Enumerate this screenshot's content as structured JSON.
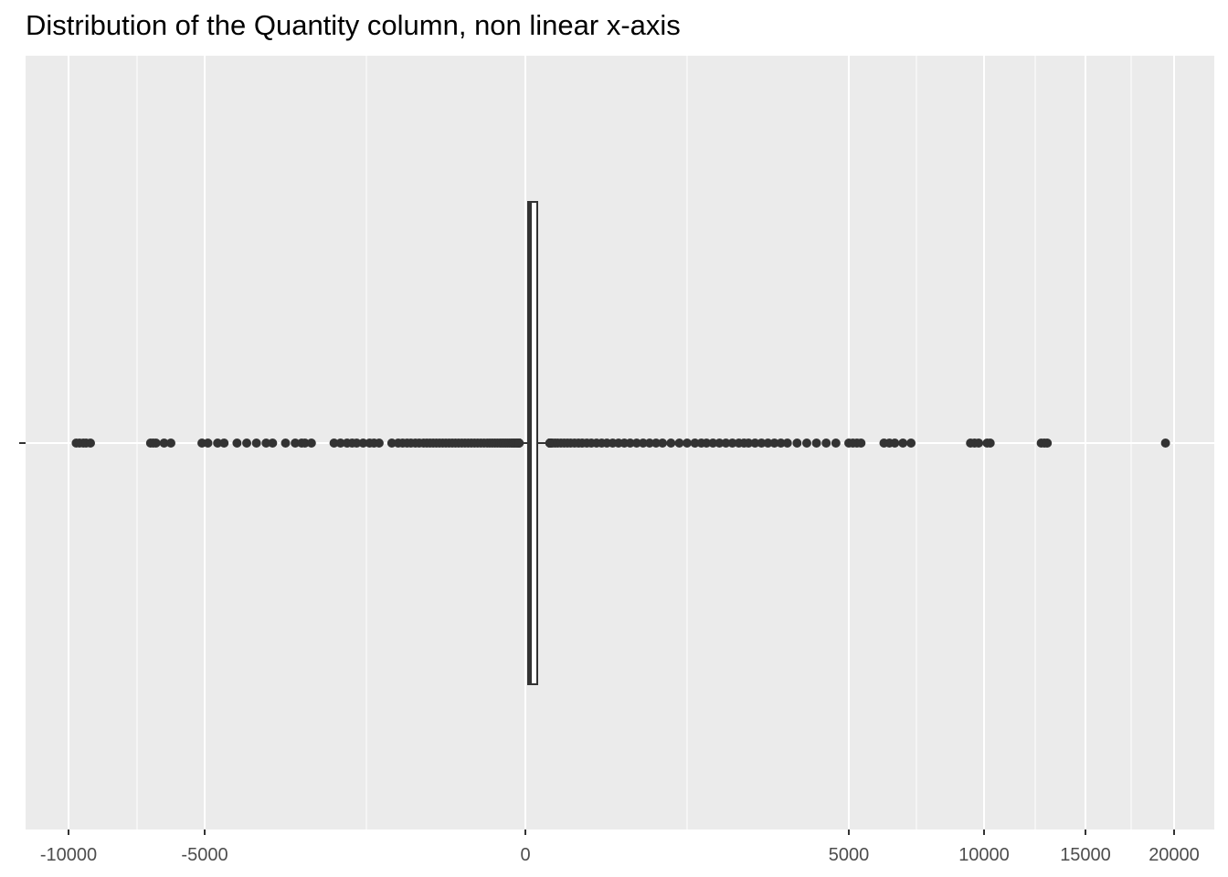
{
  "chart_data": {
    "type": "boxplot",
    "title": "Distribution of the Quantity column, non linear x-axis",
    "xlabel": "",
    "ylabel": "",
    "x_scale": "pseudo-log (nonlinear)",
    "xlim": [
      -10800,
      21000
    ],
    "grid": true,
    "x_ticks": [
      {
        "value": -10000,
        "label": "-10000"
      },
      {
        "value": -5000,
        "label": "-5000"
      },
      {
        "value": 0,
        "label": "0"
      },
      {
        "value": 5000,
        "label": "5000"
      },
      {
        "value": 10000,
        "label": "10000"
      },
      {
        "value": 15000,
        "label": "15000"
      },
      {
        "value": 20000,
        "label": "20000"
      }
    ],
    "x_minor_ticks": [
      -7500,
      -2500,
      2500,
      7500,
      12500,
      17500
    ],
    "box": {
      "q1": 2,
      "median": 5,
      "q3": 12
    },
    "outliers": [
      -9720,
      -9600,
      -9460,
      -9360,
      -9200,
      -7000,
      -6900,
      -6800,
      -6500,
      -6250,
      -5100,
      -4950,
      -4800,
      -4700,
      -4500,
      -4350,
      -4200,
      -4050,
      -3950,
      -3750,
      -3600,
      -3500,
      -3450,
      -3350,
      -3000,
      -2900,
      -2800,
      -2720,
      -2650,
      -2550,
      -2450,
      -2380,
      -2300,
      -2100,
      -2000,
      -1930,
      -1860,
      -1800,
      -1730,
      -1670,
      -1600,
      -1550,
      -1500,
      -1450,
      -1400,
      -1350,
      -1300,
      -1250,
      -1200,
      -1150,
      -1100,
      -1050,
      -1000,
      -950,
      -900,
      -850,
      -800,
      -750,
      -700,
      -650,
      -600,
      -560,
      -520,
      -480,
      -440,
      -400,
      -370,
      -340,
      -310,
      -280,
      -250,
      -220,
      -200,
      -180,
      -160,
      -140,
      -120,
      -100,
      -90,
      -80,
      -70,
      -60,
      -50,
      60,
      70,
      80,
      90,
      100,
      115,
      130,
      150,
      170,
      190,
      210,
      235,
      260,
      290,
      320,
      350,
      385,
      420,
      460,
      500,
      550,
      600,
      650,
      700,
      760,
      820,
      880,
      950,
      1020,
      1100,
      1180,
      1260,
      1350,
      1440,
      1530,
      1620,
      1720,
      1820,
      1920,
      2020,
      2120,
      2250,
      2380,
      2500,
      2620,
      2720,
      2800,
      2900,
      3000,
      3100,
      3200,
      3300,
      3380,
      3450,
      3550,
      3650,
      3750,
      3850,
      3950,
      4050,
      4200,
      4350,
      4500,
      4650,
      4800,
      5000,
      5150,
      5300,
      5450,
      6300,
      6500,
      6700,
      7000,
      7300,
      9500,
      9650,
      9800,
      10150,
      10300,
      12800,
      12950,
      13100,
      19500
    ]
  }
}
